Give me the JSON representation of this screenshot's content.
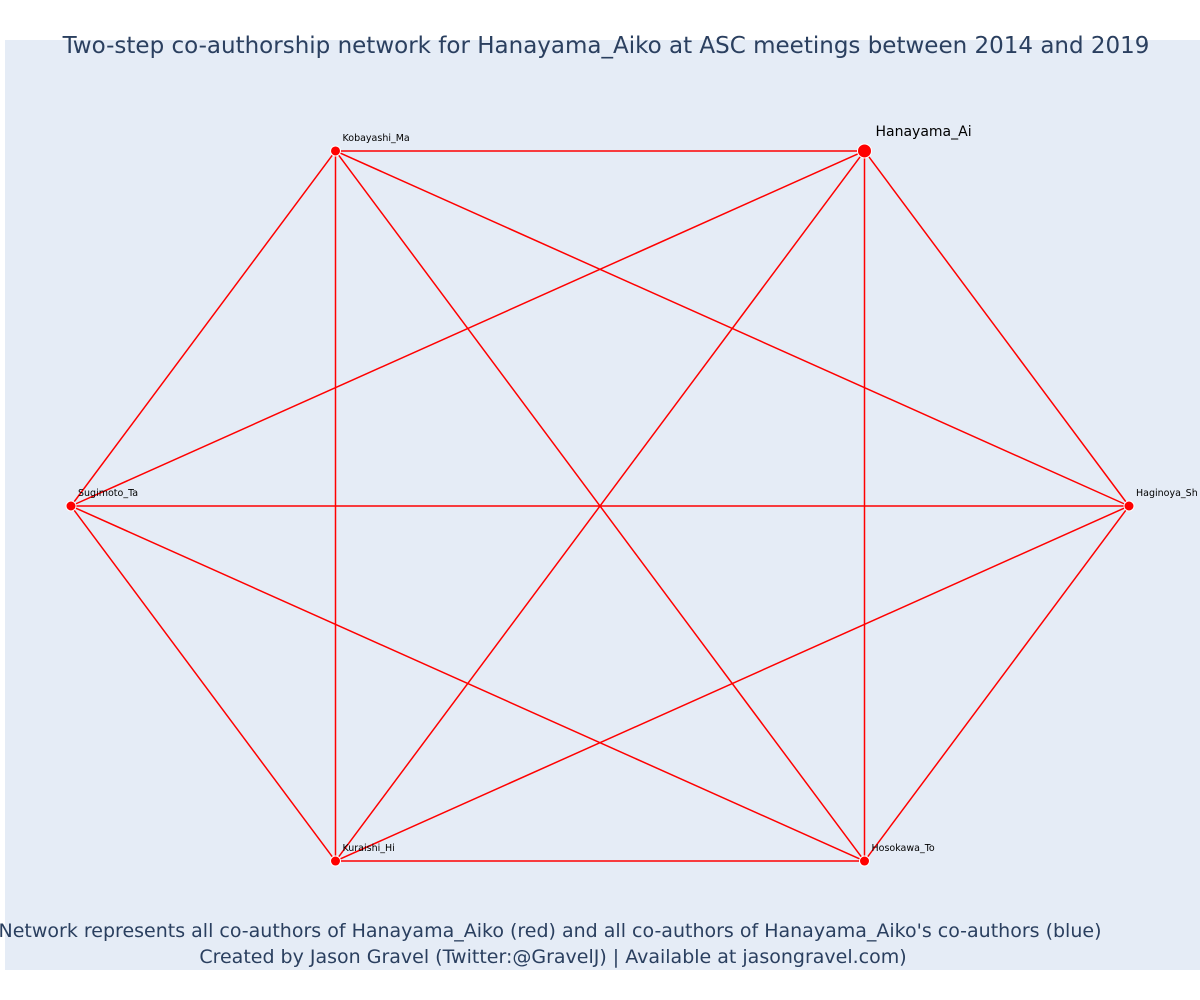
{
  "title": "Two-step co-authorship network for Hanayama_Aiko at ASC meetings between 2014 and 2019",
  "caption": {
    "line1": "Network represents all co-authors of Hanayama_Aiko (red) and all co-authors of Hanayama_Aiko's co-authors (blue)",
    "line2": "Created by Jason Gravel (Twitter:@GravelJ) | Available at jasongravel.com)"
  },
  "colors": {
    "background": "#e5ecf6",
    "edge": "#ff0000",
    "node": "#ff0000",
    "node_outline": "#ffffff",
    "text": "#2a3f5f"
  },
  "chart_data": {
    "type": "network",
    "focal_node": "Hanayama_Ai",
    "nodes": [
      {
        "id": "hanayama",
        "label": "Hanayama_Ai",
        "group": "co-author",
        "x": 0.5,
        "y": 0.866,
        "focal": true
      },
      {
        "id": "kobayashi",
        "label": "Kobayashi_Ma",
        "group": "co-author",
        "x": -0.5,
        "y": 0.866,
        "focal": false
      },
      {
        "id": "sugimoto",
        "label": "Sugimoto_Ta",
        "group": "co-author",
        "x": -1.0,
        "y": 0.0,
        "focal": false
      },
      {
        "id": "kuraishi",
        "label": "Kuraishi_Hi",
        "group": "co-author",
        "x": -0.5,
        "y": -0.866,
        "focal": false
      },
      {
        "id": "hosokawa",
        "label": "Hosokawa_To",
        "group": "co-author",
        "x": 0.5,
        "y": -0.866,
        "focal": false
      },
      {
        "id": "haginoya",
        "label": "Haginoya_Sh",
        "group": "co-author",
        "x": 1.0,
        "y": 0.0,
        "focal": false
      }
    ],
    "edges": [
      [
        "hanayama",
        "kobayashi"
      ],
      [
        "hanayama",
        "sugimoto"
      ],
      [
        "hanayama",
        "kuraishi"
      ],
      [
        "hanayama",
        "hosokawa"
      ],
      [
        "hanayama",
        "haginoya"
      ],
      [
        "kobayashi",
        "sugimoto"
      ],
      [
        "kobayashi",
        "kuraishi"
      ],
      [
        "kobayashi",
        "hosokawa"
      ],
      [
        "kobayashi",
        "haginoya"
      ],
      [
        "sugimoto",
        "kuraishi"
      ],
      [
        "sugimoto",
        "hosokawa"
      ],
      [
        "sugimoto",
        "haginoya"
      ],
      [
        "kuraishi",
        "hosokawa"
      ],
      [
        "kuraishi",
        "haginoya"
      ],
      [
        "hosokawa",
        "haginoya"
      ]
    ],
    "grid": false,
    "legend": "none"
  }
}
